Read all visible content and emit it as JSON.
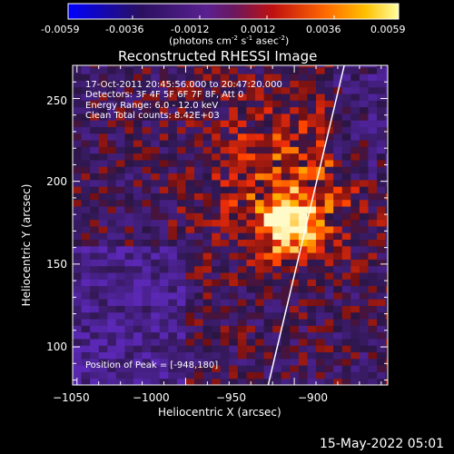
{
  "colorbar": {
    "ticks": [
      "-0.0059",
      "-0.0036",
      "-0.0012",
      "0.0012",
      "0.0036",
      "0.0059"
    ],
    "units_parts": [
      "(photons cm",
      "-2",
      " s",
      "-1",
      " asec",
      "-2",
      ")"
    ],
    "range": [
      -0.0059,
      0.0059
    ]
  },
  "header": {
    "title": "Reconstructed RHESSI Image",
    "info_lines": [
      "17-Oct-2011 20:45:56.000 to 20:47:20.000",
      "Detectors: 3F 4F 5F 6F 7F 8F, Att 0",
      "Energy Range: 6.0 - 12.0 keV",
      "Clean    Total counts: 8.42E+03"
    ]
  },
  "plot": {
    "peak_label": "Position of Peak = [-948,180]",
    "footer": "15-May-2022 05:01"
  },
  "colors": {
    "background": "#000000",
    "text": "#ffffff",
    "limb_line": "#ffffff",
    "negative": "#5a2a9a",
    "positive": "#d02010",
    "peak": "#ffee60"
  },
  "chart_data": {
    "type": "heatmap",
    "title": "Reconstructed RHESSI Image",
    "xlabel": "Heliocentric X (arcsec)",
    "ylabel": "Heliocentric Y (arcsec)",
    "xlim": [
      -1052,
      -907
    ],
    "ylim": [
      77,
      270
    ],
    "xticks": [
      -1050,
      -1000,
      -950,
      -900
    ],
    "yticks": [
      100,
      150,
      200,
      250
    ],
    "xtick_labels": [
      "−1050",
      "−1000",
      "−950",
      "−900"
    ],
    "ytick_labels": [
      "100",
      "150",
      "200",
      "250"
    ],
    "peak": {
      "x": -948,
      "y": 180
    },
    "limb_line": {
      "x": [
        -962,
        -927
      ],
      "y": [
        77,
        270
      ]
    },
    "colorbar_range": [
      -0.0059,
      0.0059
    ],
    "source": {
      "x": -954,
      "y": 172,
      "peak_value": 0.0059
    }
  }
}
